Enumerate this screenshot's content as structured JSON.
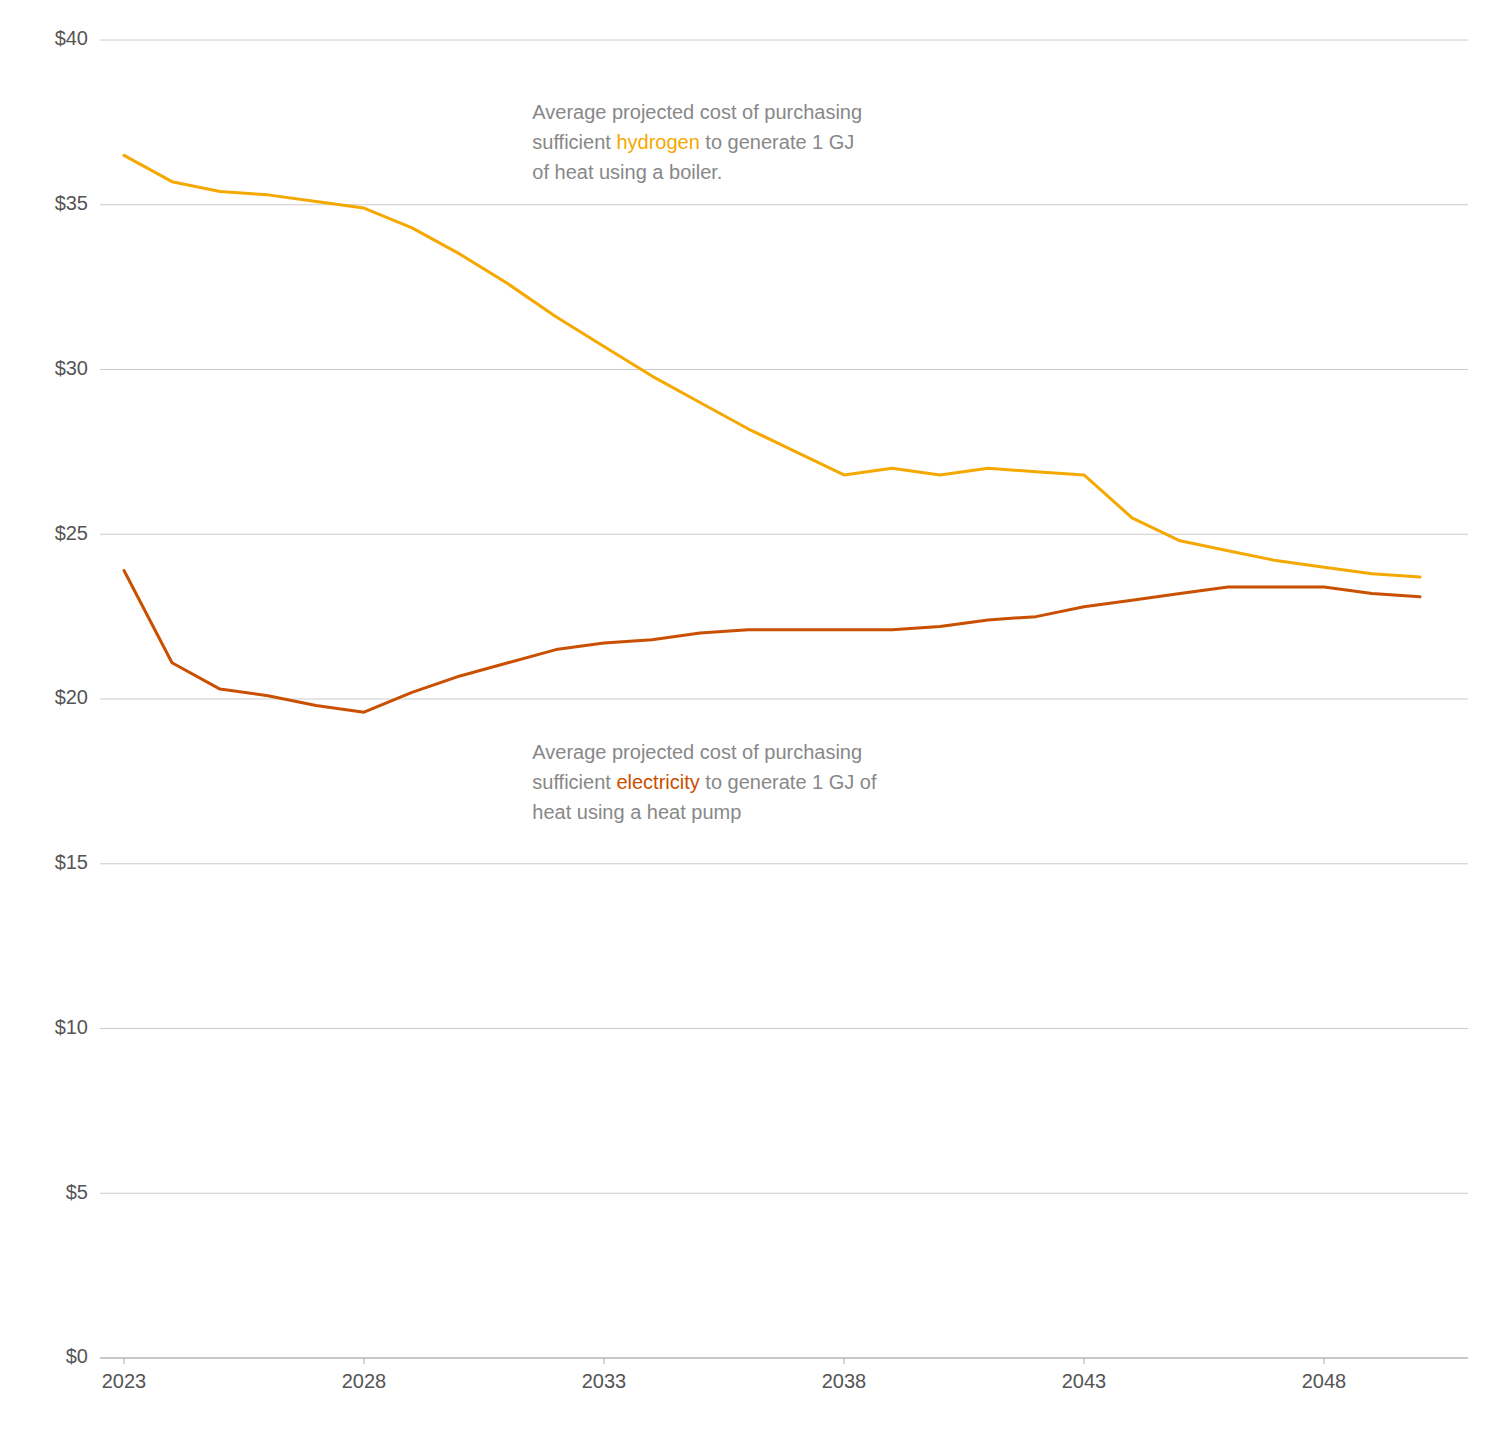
{
  "chart_data": {
    "type": "line",
    "x": [
      2023,
      2024,
      2025,
      2026,
      2027,
      2028,
      2029,
      2030,
      2031,
      2032,
      2033,
      2034,
      2035,
      2036,
      2037,
      2038,
      2039,
      2040,
      2041,
      2042,
      2043,
      2044,
      2045,
      2046,
      2047,
      2048,
      2049,
      2050
    ],
    "series": [
      {
        "color": "#F5A800",
        "values": [
          36.5,
          35.7,
          35.4,
          35.3,
          35.1,
          34.9,
          34.3,
          33.5,
          32.6,
          31.6,
          30.7,
          29.8,
          29.0,
          28.2,
          27.5,
          26.8,
          27.0,
          26.8,
          27.0,
          26.9,
          26.8,
          25.5,
          24.8,
          24.5,
          24.2,
          24.0,
          23.8,
          23.7
        ]
      },
      {
        "color": "#C85000",
        "values": [
          23.9,
          21.1,
          20.3,
          20.1,
          19.8,
          19.6,
          20.2,
          20.7,
          21.1,
          21.5,
          21.7,
          21.8,
          22.0,
          22.1,
          22.1,
          22.1,
          22.1,
          22.2,
          22.4,
          22.5,
          22.8,
          23.0,
          23.2,
          23.4,
          23.4,
          23.4,
          23.2,
          23.1
        ]
      }
    ],
    "xlim": [
      2022.5,
      2051
    ],
    "xticks": [
      2023,
      2028,
      2033,
      2038,
      2043,
      2048
    ],
    "ylim": [
      0,
      40
    ],
    "yticks": [
      {
        "value": 0,
        "label": "$0"
      },
      {
        "value": 5,
        "label": "$5"
      },
      {
        "value": 10,
        "label": "$10"
      },
      {
        "value": 15,
        "label": "$15"
      },
      {
        "value": 20,
        "label": "$20"
      },
      {
        "value": 25,
        "label": "$25"
      },
      {
        "value": 30,
        "label": "$30"
      },
      {
        "value": 35,
        "label": "$35"
      },
      {
        "value": 40,
        "label": "$40"
      }
    ],
    "grid": true,
    "annotations": [
      {
        "lines": [
          "Average projected cost of purchasing",
          "sufficient hydrogen to generate 1 GJ",
          "of heat using a boiler."
        ],
        "highlight": "hydrogen",
        "color": "#F5A800"
      },
      {
        "lines": [
          "Average projected cost of purchasing",
          "sufficient electricity to generate 1 GJ of",
          "heat using a heat pump"
        ],
        "highlight": "electricity",
        "color": "#C85000"
      }
    ]
  }
}
